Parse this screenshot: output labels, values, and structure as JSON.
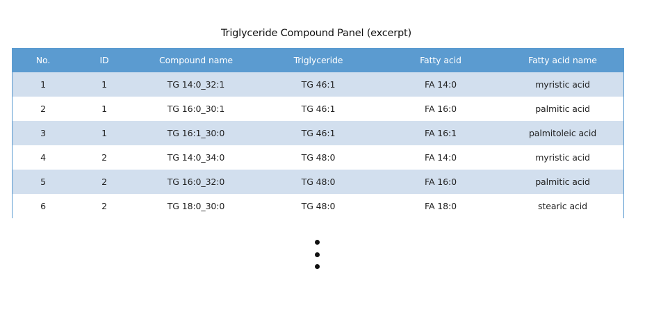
{
  "title": "Triglyceride Compound Panel (excerpt)",
  "columns": [
    "No.",
    "ID",
    "Compound name",
    "Triglyceride",
    "Fatty acid",
    "Fatty acid name"
  ],
  "rows": [
    [
      "1",
      "1",
      "TG 14:0_32:1",
      "TG 46:1",
      "FA 14:0",
      "myristic acid"
    ],
    [
      "2",
      "1",
      "TG 16:0_30:1",
      "TG 46:1",
      "FA 16:0",
      "palmitic acid"
    ],
    [
      "3",
      "1",
      "TG 16:1_30:0",
      "TG 46:1",
      "FA 16:1",
      "palmitoleic acid"
    ],
    [
      "4",
      "2",
      "TG 14:0_34:0",
      "TG 48:0",
      "FA 14:0",
      "myristic acid"
    ],
    [
      "5",
      "2",
      "TG 16:0_32:0",
      "TG 48:0",
      "FA 16:0",
      "palmitic acid"
    ],
    [
      "6",
      "2",
      "TG 18:0_30:0",
      "TG 48:0",
      "FA 18:0",
      "stearic acid"
    ]
  ],
  "colors": {
    "header_bg": "#5b9bd0",
    "header_text": "#ffffff",
    "band_row": "#d2dfee",
    "plain_row": "#ffffff"
  },
  "continuation_marker": "vertical-ellipsis"
}
